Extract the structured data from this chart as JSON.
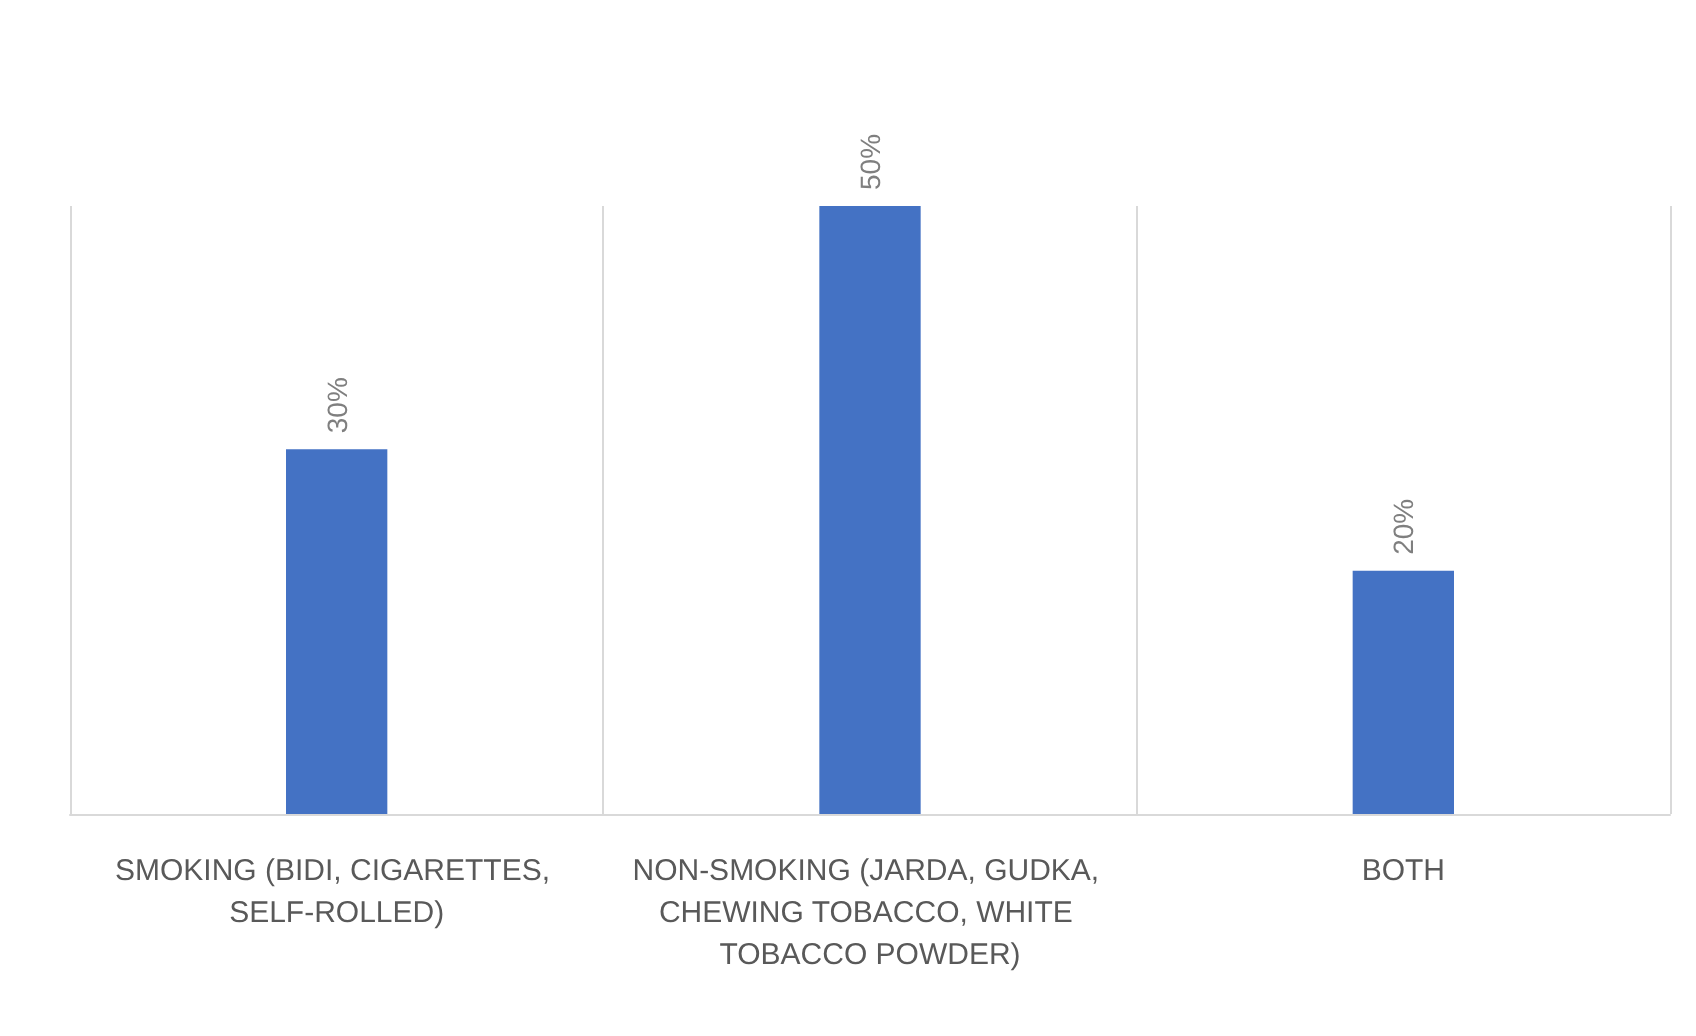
{
  "chart_data": {
    "type": "bar",
    "categories": [
      "SMOKING (BIDI, CIGARETTES, SELF-ROLLED)",
      "NON-SMOKING (JARDA, GUDKA, CHEWING TOBACCO, WHITE TOBACCO POWDER)",
      "BOTH"
    ],
    "values": [
      30,
      50,
      20
    ],
    "color": "#4472c4",
    "value_labels": [
      "30%",
      "50%",
      "20%"
    ],
    "grid": "x"
  }
}
